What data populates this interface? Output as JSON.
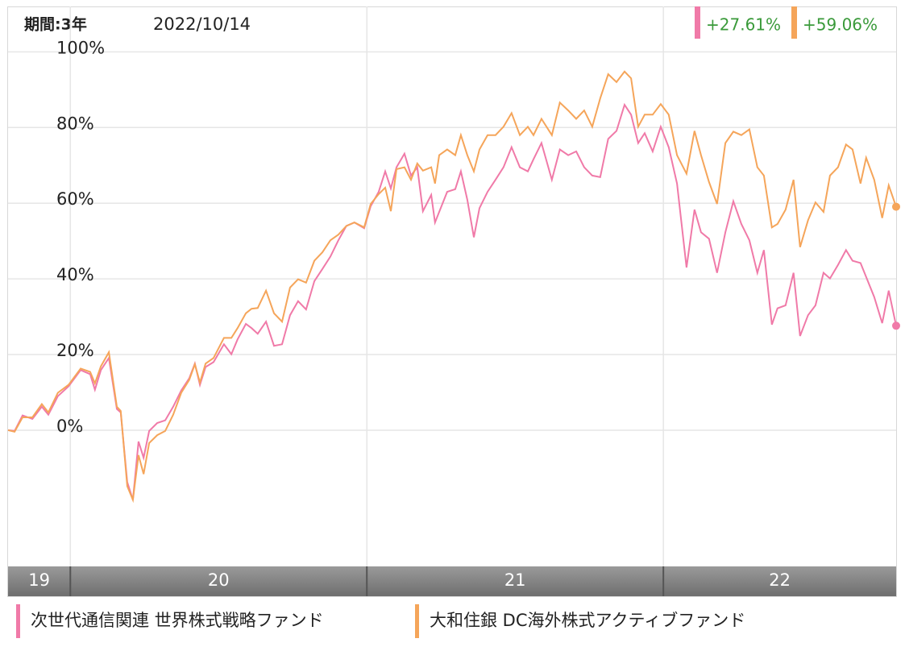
{
  "chart_data": {
    "type": "line",
    "period": "期間:3年",
    "date": "2022/10/14",
    "year_labels": [
      "19",
      "20",
      "21",
      "22"
    ],
    "xlim": [
      2019.79,
      2022.785
    ],
    "xticks": [
      2020,
      2021,
      2022
    ],
    "ylim": [
      -36,
      112
    ],
    "yticks": [
      {
        "value": 0,
        "label": "0%"
      },
      {
        "value": 20,
        "label": "20%"
      },
      {
        "value": 40,
        "label": "40%"
      },
      {
        "value": 60,
        "label": "60%"
      },
      {
        "value": 80,
        "label": "80%"
      },
      {
        "value": 100,
        "label": "100%"
      }
    ],
    "grid": true,
    "x": [
      2019.79,
      2019.812,
      2019.839,
      2019.872,
      2019.904,
      2019.926,
      2019.958,
      2019.994,
      2020.035,
      2020.067,
      2020.083,
      2020.103,
      2020.13,
      2020.157,
      2020.17,
      2020.192,
      2020.211,
      2020.23,
      2020.247,
      2020.266,
      2020.293,
      2020.32,
      2020.347,
      2020.374,
      2020.401,
      2020.42,
      2020.437,
      2020.456,
      2020.483,
      2020.518,
      2020.543,
      2020.564,
      2020.592,
      2020.611,
      2020.632,
      2020.66,
      2020.687,
      2020.714,
      2020.741,
      2020.768,
      2020.795,
      2020.823,
      2020.85,
      2020.877,
      2020.904,
      2020.931,
      2020.958,
      2020.991,
      2021.013,
      2021.04,
      2021.062,
      2021.081,
      2021.1,
      2021.127,
      2021.149,
      2021.17,
      2021.189,
      2021.217,
      2021.23,
      2021.244,
      2021.271,
      2021.298,
      2021.317,
      2021.339,
      2021.361,
      2021.38,
      2021.407,
      2021.434,
      2021.461,
      2021.488,
      2021.516,
      2021.543,
      2021.562,
      2021.589,
      2021.624,
      2021.651,
      2021.679,
      2021.706,
      2021.733,
      2021.76,
      2021.787,
      2021.814,
      2021.842,
      2021.869,
      2021.891,
      2021.915,
      2021.937,
      2021.964,
      2021.991,
      2022.018,
      2022.046,
      2022.078,
      2022.105,
      2022.127,
      2022.154,
      2022.181,
      2022.209,
      2022.236,
      2022.263,
      2022.29,
      2022.317,
      2022.339,
      2022.366,
      2022.385,
      2022.412,
      2022.439,
      2022.461,
      2022.488,
      2022.513,
      2022.54,
      2022.562,
      2022.589,
      2022.616,
      2022.638,
      2022.665,
      2022.684,
      2022.711,
      2022.738,
      2022.76,
      2022.785
    ],
    "series": [
      {
        "name": "次世代通信関連 世界株式戦略ファンド",
        "color": "#f07aa8",
        "end_label": "+27.61%",
        "values": [
          0,
          -0.2,
          3.9,
          3.0,
          6.2,
          4.1,
          9.0,
          11.6,
          15.9,
          14.8,
          10.7,
          15.9,
          19.1,
          5.6,
          4.7,
          -13.7,
          -18.4,
          -3.0,
          -7.3,
          -0.2,
          1.9,
          2.6,
          6.2,
          10.5,
          13.7,
          17.6,
          12.0,
          16.7,
          18.0,
          22.7,
          20.1,
          24.0,
          28.1,
          27.0,
          25.5,
          28.7,
          22.3,
          22.7,
          30.4,
          34.1,
          31.9,
          39.4,
          42.6,
          45.9,
          50.2,
          54.0,
          54.9,
          53.4,
          59.2,
          63.0,
          68.4,
          63.9,
          69.5,
          73.1,
          67.3,
          69.5,
          57.9,
          62.2,
          54.9,
          57.7,
          63.0,
          63.7,
          68.4,
          60.9,
          51.0,
          58.7,
          63.0,
          66.2,
          69.5,
          74.8,
          69.5,
          68.4,
          71.6,
          75.9,
          66.2,
          74.2,
          72.7,
          73.7,
          69.5,
          67.3,
          66.9,
          77.0,
          79.1,
          86.0,
          83.4,
          75.9,
          78.5,
          73.7,
          80.2,
          74.8,
          65.2,
          43.0,
          58.3,
          52.3,
          50.6,
          41.6,
          52.3,
          60.5,
          54.5,
          50.2,
          41.6,
          47.6,
          27.9,
          32.2,
          33.0,
          41.6,
          24.9,
          30.4,
          33.0,
          41.6,
          40.1,
          43.7,
          47.6,
          44.8,
          44.2,
          40.5,
          35.2,
          28.3,
          36.9,
          27.61
        ]
      },
      {
        "name": "大和住銀 DC海外株式アクティブファンド",
        "color": "#f5a55a",
        "end_label": "+59.06%",
        "values": [
          0,
          -0.4,
          3.4,
          3.4,
          6.9,
          4.7,
          9.9,
          12.0,
          16.3,
          15.4,
          12.4,
          16.9,
          20.6,
          6.2,
          5.1,
          -14.8,
          -18.4,
          -6.6,
          -11.6,
          -3.4,
          -1.3,
          -0.2,
          4.1,
          9.9,
          13.3,
          17.4,
          12.6,
          17.6,
          19.1,
          24.4,
          24.4,
          27.0,
          30.9,
          32.1,
          32.3,
          36.9,
          30.9,
          28.7,
          37.7,
          39.9,
          39.0,
          44.8,
          47.0,
          50.2,
          51.7,
          54.0,
          54.9,
          53.6,
          59.8,
          62.4,
          64.1,
          57.9,
          69.0,
          69.5,
          66.2,
          70.5,
          68.6,
          69.5,
          65.2,
          72.7,
          74.2,
          72.7,
          78.0,
          72.7,
          68.4,
          74.2,
          78.0,
          78.0,
          80.2,
          83.8,
          78.0,
          80.2,
          78.0,
          82.3,
          78.0,
          86.6,
          84.5,
          82.3,
          84.5,
          80.2,
          87.7,
          94.1,
          92.0,
          94.8,
          93.0,
          80.2,
          83.4,
          83.4,
          86.2,
          83.4,
          72.7,
          67.8,
          79.1,
          72.7,
          65.6,
          59.8,
          75.9,
          78.9,
          78.0,
          79.5,
          69.5,
          67.3,
          53.6,
          54.5,
          58.3,
          66.2,
          48.4,
          55.5,
          60.2,
          57.7,
          67.3,
          69.5,
          75.5,
          74.2,
          65.2,
          72.0,
          66.2,
          56.1,
          64.7,
          59.06
        ]
      }
    ],
    "end_label_color": "#3a9a3a"
  }
}
